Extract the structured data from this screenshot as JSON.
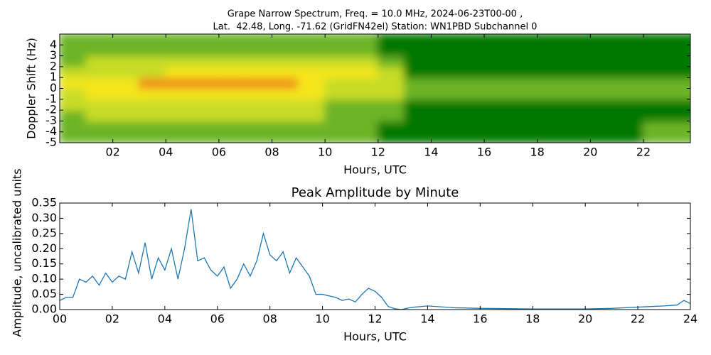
{
  "chart_data": [
    {
      "type": "heatmap",
      "title": [
        "Grape Narrow Spectrum, Freq. = 10.0 MHz, 2024-06-23T00-00 ,",
        "Lat.  42.48, Long. -71.62 (GridFN42el) Station: WN1PBD Subchannel 0"
      ],
      "xlabel": "Hours, UTC",
      "ylabel": "Doppler Shift (Hz)",
      "xlim": [
        0,
        23.77
      ],
      "ylim": [
        -5,
        5
      ],
      "xticks": [
        {
          "value": 2,
          "label": "02"
        },
        {
          "value": 4,
          "label": "04"
        },
        {
          "value": 6,
          "label": "06"
        },
        {
          "value": 8,
          "label": "08"
        },
        {
          "value": 10,
          "label": "10"
        },
        {
          "value": 12,
          "label": "12"
        },
        {
          "value": 14,
          "label": "14"
        },
        {
          "value": 16,
          "label": "16"
        },
        {
          "value": 18,
          "label": "18"
        },
        {
          "value": 20,
          "label": "20"
        },
        {
          "value": 22,
          "label": "22"
        }
      ],
      "yticks": [
        -5,
        -4,
        -3,
        -2,
        -1,
        0,
        1,
        2,
        3,
        4
      ],
      "xbins": [
        0,
        1,
        2,
        3,
        4,
        5,
        6,
        7,
        8,
        9,
        10,
        11,
        12,
        13,
        14,
        15,
        16,
        17,
        18,
        19,
        20,
        21,
        22,
        23,
        24
      ],
      "ybins": [
        -5,
        -4,
        -3,
        -2,
        -1,
        0,
        1,
        2,
        3,
        4,
        5
      ],
      "colors": [
        "#007800",
        "#6cb428",
        "#c8dc28",
        "#f5e61e",
        "#f08c1e"
      ],
      "z": [
        [
          1,
          1,
          1,
          2,
          2,
          3,
          2,
          1,
          1,
          1
        ],
        [
          1,
          1,
          2,
          2,
          3,
          3,
          2,
          2,
          1,
          1
        ],
        [
          1,
          1,
          2,
          2,
          3,
          3,
          2,
          2,
          1,
          1
        ],
        [
          1,
          1,
          2,
          2,
          3,
          4,
          2,
          2,
          1,
          1
        ],
        [
          1,
          1,
          2,
          2,
          3,
          4,
          3,
          2,
          1,
          1
        ],
        [
          1,
          1,
          2,
          2,
          3,
          4,
          3,
          2,
          1,
          1
        ],
        [
          1,
          1,
          2,
          2,
          3,
          4,
          3,
          2,
          1,
          1
        ],
        [
          1,
          1,
          2,
          2,
          3,
          4,
          3,
          2,
          1,
          1
        ],
        [
          1,
          1,
          2,
          2,
          3,
          4,
          3,
          2,
          1,
          1
        ],
        [
          1,
          1,
          2,
          2,
          3,
          3,
          3,
          2,
          1,
          1
        ],
        [
          1,
          1,
          1,
          1,
          2,
          2,
          3,
          2,
          1,
          1
        ],
        [
          1,
          1,
          1,
          1,
          2,
          2,
          3,
          2,
          1,
          1
        ],
        [
          0,
          0,
          1,
          1,
          2,
          2,
          2,
          1,
          0,
          0
        ],
        [
          0,
          0,
          0,
          0,
          1,
          1,
          0,
          0,
          0,
          0
        ],
        [
          0,
          0,
          0,
          0,
          1,
          1,
          0,
          0,
          0,
          0
        ],
        [
          0,
          0,
          0,
          0,
          1,
          1,
          0,
          0,
          0,
          0
        ],
        [
          0,
          0,
          0,
          0,
          1,
          1,
          0,
          0,
          0,
          0
        ],
        [
          0,
          0,
          0,
          0,
          1,
          1,
          0,
          0,
          0,
          0
        ],
        [
          0,
          0,
          0,
          0,
          1,
          1,
          0,
          0,
          0,
          0
        ],
        [
          0,
          0,
          0,
          0,
          1,
          1,
          0,
          0,
          0,
          0
        ],
        [
          0,
          0,
          0,
          0,
          1,
          1,
          0,
          0,
          0,
          0
        ],
        [
          0,
          0,
          0,
          0,
          1,
          1,
          0,
          0,
          0,
          0
        ],
        [
          1,
          1,
          0,
          0,
          1,
          1,
          0,
          0,
          0,
          0
        ],
        [
          1,
          1,
          0,
          0,
          1,
          1,
          0,
          0,
          0,
          0
        ]
      ]
    },
    {
      "type": "line",
      "title": "Peak Amplitude by Minute",
      "xlabel": "Hours, UTC",
      "ylabel": "Amplitude, uncalibrated units",
      "xlim": [
        0,
        24
      ],
      "ylim": [
        0,
        0.35
      ],
      "xticks": [
        {
          "value": 0,
          "label": "00"
        },
        {
          "value": 2,
          "label": "02"
        },
        {
          "value": 4,
          "label": "04"
        },
        {
          "value": 6,
          "label": "06"
        },
        {
          "value": 8,
          "label": "08"
        },
        {
          "value": 10,
          "label": "10"
        },
        {
          "value": 12,
          "label": "12"
        },
        {
          "value": 14,
          "label": "14"
        },
        {
          "value": 16,
          "label": "16"
        },
        {
          "value": 18,
          "label": "18"
        },
        {
          "value": 20,
          "label": "20"
        },
        {
          "value": 22,
          "label": "22"
        },
        {
          "value": 24,
          "label": "24"
        }
      ],
      "yticks": [
        {
          "value": 0,
          "label": "0.00"
        },
        {
          "value": 0.05,
          "label": "0.05"
        },
        {
          "value": 0.1,
          "label": "0.10"
        },
        {
          "value": 0.15,
          "label": "0.15"
        },
        {
          "value": 0.2,
          "label": "0.20"
        },
        {
          "value": 0.25,
          "label": "0.25"
        },
        {
          "value": 0.3,
          "label": "0.30"
        },
        {
          "value": 0.35,
          "label": "0.35"
        }
      ],
      "color": "#1f77b4",
      "x": [
        0,
        0.25,
        0.5,
        0.75,
        1,
        1.25,
        1.5,
        1.75,
        2,
        2.25,
        2.5,
        2.75,
        3,
        3.25,
        3.5,
        3.75,
        4,
        4.25,
        4.5,
        4.75,
        5,
        5.25,
        5.5,
        5.75,
        6,
        6.25,
        6.5,
        6.75,
        7,
        7.25,
        7.5,
        7.75,
        8,
        8.25,
        8.5,
        8.75,
        9,
        9.25,
        9.5,
        9.75,
        10,
        10.25,
        10.5,
        10.75,
        11,
        11.25,
        11.5,
        11.75,
        12,
        12.25,
        12.5,
        12.75,
        13,
        13.25,
        13.5,
        13.75,
        14,
        15,
        16,
        17,
        18,
        19,
        20,
        21,
        22,
        22.5,
        23,
        23.5,
        23.75,
        24
      ],
      "values": [
        0.03,
        0.04,
        0.04,
        0.1,
        0.09,
        0.11,
        0.08,
        0.12,
        0.09,
        0.11,
        0.1,
        0.19,
        0.12,
        0.22,
        0.1,
        0.17,
        0.13,
        0.2,
        0.1,
        0.2,
        0.33,
        0.16,
        0.17,
        0.13,
        0.11,
        0.14,
        0.07,
        0.1,
        0.15,
        0.11,
        0.16,
        0.25,
        0.18,
        0.16,
        0.19,
        0.12,
        0.17,
        0.14,
        0.11,
        0.05,
        0.05,
        0.045,
        0.04,
        0.03,
        0.035,
        0.025,
        0.05,
        0.07,
        0.06,
        0.04,
        0.01,
        0.003,
        0,
        0.005,
        0.008,
        0.01,
        0.012,
        0.006,
        0.004,
        0.003,
        0.002,
        0.002,
        0.002,
        0.004,
        0.008,
        0.01,
        0.012,
        0.015,
        0.03,
        0.02
      ]
    }
  ]
}
